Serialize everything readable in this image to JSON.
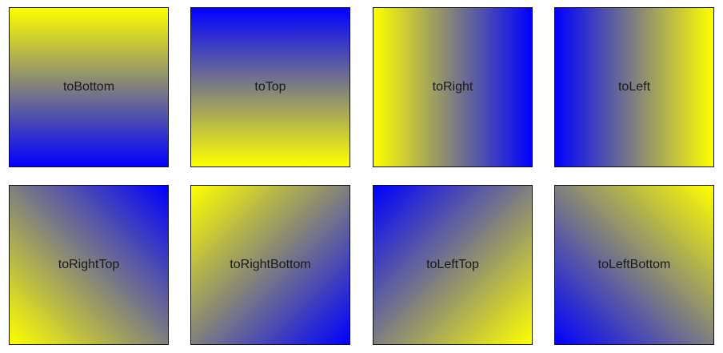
{
  "colors": {
    "start": "#ffff00",
    "end": "#0000ff"
  },
  "tiles": [
    {
      "label": "toBottom",
      "direction": "to bottom",
      "from": "#ffff00",
      "to": "#0000ff"
    },
    {
      "label": "toTop",
      "direction": "to top",
      "from": "#ffff00",
      "to": "#0000ff"
    },
    {
      "label": "toRight",
      "direction": "to right",
      "from": "#ffff00",
      "to": "#0000ff"
    },
    {
      "label": "toLeft",
      "direction": "to left",
      "from": "#ffff00",
      "to": "#0000ff"
    },
    {
      "label": "toRightTop",
      "direction": "to right top",
      "from": "#ffff00",
      "to": "#0000ff"
    },
    {
      "label": "toRightBottom",
      "direction": "to right bottom",
      "from": "#ffff00",
      "to": "#0000ff"
    },
    {
      "label": "toLeftTop",
      "direction": "to left top",
      "from": "#ffff00",
      "to": "#0000ff"
    },
    {
      "label": "toLeftBottom",
      "direction": "to left bottom",
      "from": "#ffff00",
      "to": "#0000ff"
    }
  ]
}
